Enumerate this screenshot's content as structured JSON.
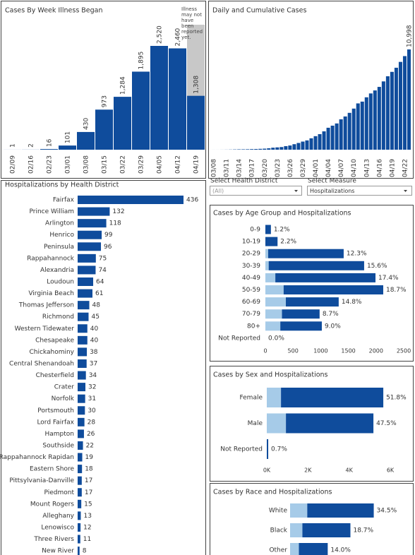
{
  "chart_data": [
    {
      "type": "bar",
      "title": "Cases By Week Illness Began",
      "annotation": "Illness may not have been reported yet.",
      "categories": [
        "02/09",
        "02/16",
        "02/23",
        "03/01",
        "03/08",
        "03/15",
        "03/22",
        "03/29",
        "04/05",
        "04/12",
        "04/19"
      ],
      "values": [
        1,
        2,
        16,
        101,
        430,
        973,
        1284,
        1895,
        2520,
        2460,
        1308
      ],
      "value_labels": [
        "1",
        "2",
        "16",
        "101",
        "430",
        "973",
        "1,284",
        "1,895",
        "2,520",
        "2,460",
        "1,308"
      ],
      "color": "#0f4c9c",
      "annotation_color": "#c8c8c8"
    },
    {
      "type": "bar",
      "title": "Daily and Cumulative Cases",
      "categories": [
        "03/08",
        null,
        null,
        "03/11",
        null,
        null,
        "03/14",
        null,
        null,
        "03/17",
        null,
        null,
        "03/20",
        null,
        null,
        "03/23",
        null,
        null,
        "03/26",
        null,
        null,
        "03/29",
        null,
        null,
        "04/01",
        null,
        null,
        "04/04",
        null,
        null,
        "04/07",
        null,
        null,
        "04/10",
        null,
        null,
        "04/13",
        null,
        null,
        "04/16",
        null,
        null,
        "04/19",
        null,
        null,
        "04/22",
        null
      ],
      "values": [
        2,
        2,
        5,
        9,
        17,
        30,
        41,
        45,
        51,
        67,
        77,
        94,
        114,
        152,
        219,
        254,
        290,
        391,
        460,
        604,
        739,
        890,
        1020,
        1250,
        1484,
        1706,
        2012,
        2407,
        2637,
        2878,
        3333,
        3645,
        4042,
        4509,
        5077,
        5274,
        5747,
        6171,
        6500,
        6889,
        7491,
        8053,
        8537,
        8990,
        9630,
        10266,
        10998
      ],
      "value_labels": [
        null,
        null,
        null,
        null,
        null,
        null,
        null,
        null,
        null,
        null,
        null,
        null,
        null,
        null,
        null,
        null,
        null,
        null,
        null,
        null,
        null,
        null,
        null,
        null,
        null,
        null,
        null,
        null,
        null,
        null,
        null,
        null,
        null,
        null,
        null,
        null,
        null,
        null,
        null,
        null,
        null,
        null,
        null,
        null,
        null,
        null,
        "10,998"
      ],
      "color": "#0f4c9c"
    },
    {
      "type": "hbar",
      "title": "Hospitalizations by Health District",
      "categories": [
        "Fairfax",
        "Prince William",
        "Arlington",
        "Henrico",
        "Peninsula",
        "Rappahannock",
        "Alexandria",
        "Loudoun",
        "Virginia Beach",
        "Thomas Jefferson",
        "Richmond",
        "Western Tidewater",
        "Chesapeake",
        "Chickahominy",
        "Central Shenandoah",
        "Chesterfield",
        "Crater",
        "Norfolk",
        "Portsmouth",
        "Lord Fairfax",
        "Hampton",
        "Southside",
        "Rappahannock Rapidan",
        "Eastern Shore",
        "Pittsylvania-Danville",
        "Piedmont",
        "Mount Rogers",
        "Alleghany",
        "Lenowisco",
        "Three Rivers",
        "New River"
      ],
      "values": [
        436,
        132,
        118,
        99,
        96,
        75,
        74,
        64,
        61,
        48,
        45,
        40,
        40,
        38,
        37,
        34,
        32,
        31,
        30,
        28,
        26,
        22,
        19,
        18,
        17,
        17,
        15,
        13,
        12,
        11,
        8
      ],
      "color": "#0f4c9c"
    },
    {
      "type": "stacked_hbar",
      "title": "Cases by Age Group and Hospitalizations",
      "categories": [
        "0-9",
        "10-19",
        "20-29",
        "30-39",
        "40-49",
        "50-59",
        "60-69",
        "70-79",
        "80+",
        "Not Reported"
      ],
      "series": [
        {
          "color": "#a6cbe8",
          "values": [
            0,
            0,
            50,
            60,
            180,
            330,
            370,
            300,
            270,
            0
          ]
        },
        {
          "color": "#0f4c9c",
          "values": [
            100,
            220,
            1365,
            1725,
            1810,
            1800,
            955,
            680,
            750,
            0
          ]
        }
      ],
      "labels": [
        "1.2%",
        "2.2%",
        "12.3%",
        "15.6%",
        "17.4%",
        "18.7%",
        "14.8%",
        "8.7%",
        "9.0%",
        "0.0%"
      ],
      "xlim": [
        0,
        2500
      ],
      "xticks": [
        0,
        500,
        1000,
        1500,
        2000,
        2500
      ]
    },
    {
      "type": "stacked_hbar",
      "title": "Cases by Sex and Hospitalizations",
      "categories": [
        "Female",
        "Male",
        "Not Reported"
      ],
      "series": [
        {
          "color": "#a6cbe8",
          "values": [
            690,
            930,
            0
          ]
        },
        {
          "color": "#0f4c9c",
          "values": [
            4970,
            4250,
            70
          ]
        }
      ],
      "labels": [
        "51.8%",
        "47.5%",
        "0.7%"
      ],
      "xlim": [
        0,
        6000
      ],
      "xticks": [
        {
          "value": 0,
          "label": "0K"
        },
        {
          "value": 2000,
          "label": "2K"
        },
        {
          "value": 4000,
          "label": "4K"
        },
        {
          "value": 6000,
          "label": "6K"
        }
      ]
    },
    {
      "type": "stacked_hbar",
      "title": "Cases by Race and Hospitalizations",
      "categories": [
        "White",
        "Black",
        "Other"
      ],
      "series": [
        {
          "color": "#a6cbe8",
          "values": [
            780,
            560,
            400
          ]
        },
        {
          "color": "#0f4c9c",
          "values": [
            3020,
            2180,
            1310
          ]
        }
      ],
      "labels": [
        "34.5%",
        "18.7%",
        "14.0%"
      ],
      "xlim": [
        0,
        5000
      ]
    }
  ],
  "filters": [
    {
      "label": "Select Health District",
      "value": "(All)"
    },
    {
      "label": "Select Measure",
      "value": "Hospitalizations"
    }
  ]
}
